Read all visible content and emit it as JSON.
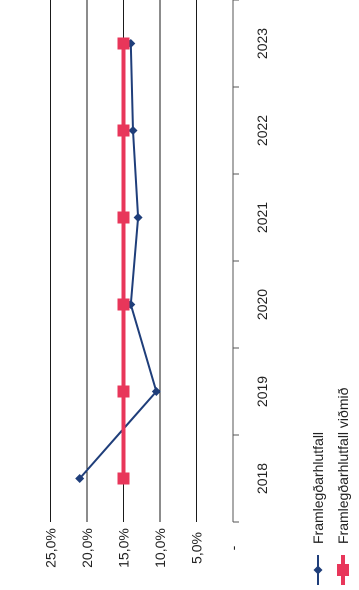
{
  "chart_data": {
    "type": "line",
    "orientation": "rotated-90-clockwise",
    "categories": [
      "2018",
      "2019",
      "2020",
      "2021",
      "2022",
      "2023"
    ],
    "series": [
      {
        "name": "Framlegðarhlutfall",
        "values": [
          21.0,
          10.5,
          14.0,
          13.0,
          13.7,
          14.0
        ],
        "color": "#1F3E7A",
        "marker": "diamond"
      },
      {
        "name": "Framlegðarhlutfall viðmið",
        "values": [
          15.0,
          15.0,
          15.0,
          15.0,
          15.0,
          15.0
        ],
        "color": "#E8365A",
        "marker": "square"
      }
    ],
    "y_ticks": [
      "-",
      "5,0%",
      "10,0%",
      "15,0%",
      "20,0%",
      "25,0%"
    ],
    "ylim": [
      0,
      25
    ],
    "grid": true,
    "legend_position": "bottom"
  }
}
